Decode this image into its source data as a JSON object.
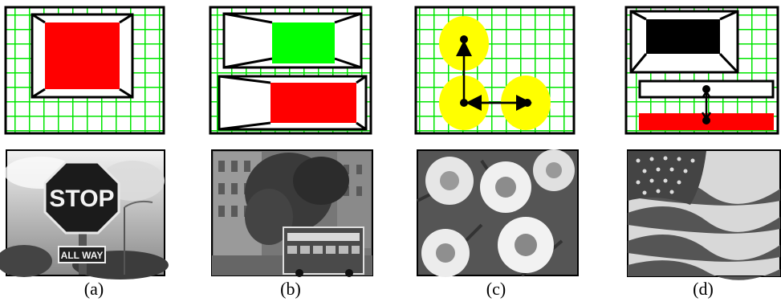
{
  "panels": [
    {
      "caption": "(a)",
      "photo_text": {
        "sign": "STOP",
        "plate": "ALL WAY"
      }
    },
    {
      "caption": "(b)"
    },
    {
      "caption": "(c)"
    },
    {
      "caption": "(d)"
    }
  ],
  "colors": {
    "grid": "#00e600",
    "red": "#ff0000",
    "green": "#00ff00",
    "yellow": "#ffff00",
    "black": "#000000"
  }
}
